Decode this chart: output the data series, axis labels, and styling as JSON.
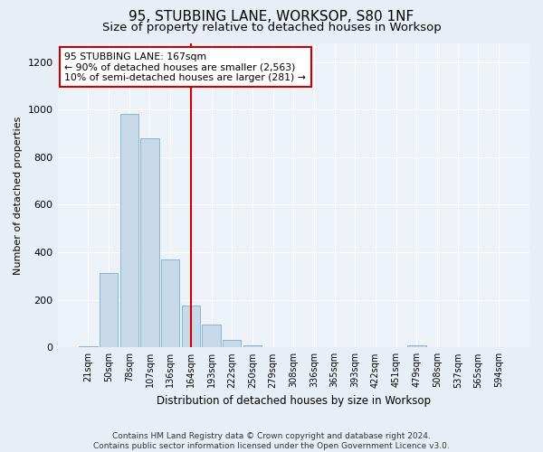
{
  "title": "95, STUBBING LANE, WORKSOP, S80 1NF",
  "subtitle": "Size of property relative to detached houses in Worksop",
  "xlabel": "Distribution of detached houses by size in Worksop",
  "ylabel": "Number of detached properties",
  "categories": [
    "21sqm",
    "50sqm",
    "78sqm",
    "107sqm",
    "136sqm",
    "164sqm",
    "193sqm",
    "222sqm",
    "250sqm",
    "279sqm",
    "308sqm",
    "336sqm",
    "365sqm",
    "393sqm",
    "422sqm",
    "451sqm",
    "479sqm",
    "508sqm",
    "537sqm",
    "565sqm",
    "594sqm"
  ],
  "values": [
    5,
    313,
    980,
    878,
    370,
    175,
    95,
    30,
    10,
    0,
    0,
    0,
    0,
    0,
    0,
    0,
    10,
    0,
    0,
    0,
    0
  ],
  "bar_color": "#c8d9ea",
  "bar_edge_color": "#7aafd4",
  "vline_x": 5,
  "vline_color": "#cc0000",
  "annotation_text": "95 STUBBING LANE: 167sqm\n← 90% of detached houses are smaller (2,563)\n10% of semi-detached houses are larger (281) →",
  "annotation_box_color": "#ffffff",
  "annotation_box_edge": "#cc0000",
  "ylim": [
    0,
    1280
  ],
  "yticks": [
    0,
    200,
    400,
    600,
    800,
    1000,
    1200
  ],
  "footer": "Contains HM Land Registry data © Crown copyright and database right 2024.\nContains public sector information licensed under the Open Government Licence v3.0.",
  "bg_color": "#e8eef5",
  "plot_bg_color": "#edf2f8",
  "title_fontsize": 11,
  "subtitle_fontsize": 9.5,
  "footer_fontsize": 6.5
}
